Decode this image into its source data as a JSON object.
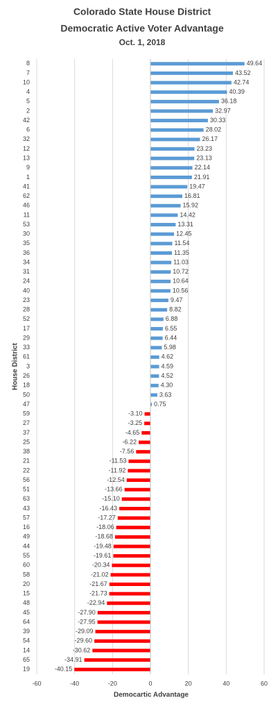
{
  "chart_data": {
    "type": "bar",
    "orientation": "horizontal",
    "title": [
      "Colorado State House District",
      "Democratic Active Voter Advantage"
    ],
    "subtitle": "Oct. 1, 2018",
    "x_label": "Democartic Advantage",
    "y_label": "House District",
    "categories": [
      "8",
      "7",
      "10",
      "4",
      "5",
      "2",
      "42",
      "6",
      "32",
      "12",
      "13",
      "9",
      "1",
      "41",
      "62",
      "46",
      "11",
      "53",
      "30",
      "35",
      "36",
      "34",
      "31",
      "24",
      "40",
      "23",
      "28",
      "52",
      "17",
      "29",
      "33",
      "61",
      "3",
      "26",
      "18",
      "50",
      "47",
      "59",
      "27",
      "37",
      "25",
      "38",
      "21",
      "22",
      "56",
      "51",
      "63",
      "43",
      "57",
      "16",
      "49",
      "44",
      "55",
      "60",
      "58",
      "20",
      "15",
      "48",
      "45",
      "64",
      "39",
      "54",
      "14",
      "65",
      "19"
    ],
    "values": [
      49.64,
      43.52,
      42.74,
      40.39,
      36.18,
      32.97,
      30.33,
      28.02,
      26.17,
      23.23,
      23.13,
      22.14,
      21.91,
      19.47,
      16.81,
      15.92,
      14.42,
      13.31,
      12.45,
      11.54,
      11.35,
      11.03,
      10.72,
      10.64,
      10.56,
      9.47,
      8.82,
      6.88,
      6.55,
      6.44,
      5.98,
      4.62,
      4.59,
      4.52,
      4.3,
      3.63,
      0.75,
      -3.1,
      -3.25,
      -4.65,
      -6.22,
      -7.56,
      -11.53,
      -11.92,
      -12.54,
      -13.66,
      -15.1,
      -16.43,
      -17.27,
      -18.06,
      -18.68,
      -19.48,
      -19.61,
      -20.34,
      -21.02,
      -21.67,
      -21.73,
      -22.94,
      -27.9,
      -27.95,
      -29.09,
      -29.6,
      -30.62,
      -34.91,
      -40.15
    ],
    "value_labels": [
      "49.64",
      "43.52",
      "42.74",
      "40.39",
      "36.18",
      "32.97",
      "30.33",
      "28.02",
      "26.17",
      "23.23",
      "23.13",
      "22.14",
      "21.91",
      "19.47",
      "16.81",
      "15.92",
      "14.42",
      "13.31",
      "12.45",
      "11.54",
      "11.35",
      "11.03",
      "10.72",
      "10.64",
      "10.56",
      "9.47",
      "8.82",
      "6.88",
      "6.55",
      "6.44",
      "5.98",
      "4.62",
      "4.59",
      "4.52",
      "4.30",
      "3.63",
      "0.75",
      "-3.10",
      "-3.25",
      "-4.65",
      "-6.22",
      "-7.56",
      "-11.53",
      "-11.92",
      "-12.54",
      "-13.66",
      "-15.10",
      "-16.43",
      "-17.27",
      "-18.06",
      "-18.68",
      "-19.48",
      "-19.61",
      "-20.34",
      "-21.02",
      "-21.67",
      "-21.73",
      "-22.94",
      "-27.90",
      "-27.95",
      "-29.09",
      "-29.60",
      "-30.62",
      "-34.91",
      "-40.15"
    ],
    "color": "#5b9bd5",
    "negative_color": "#ff0000",
    "xlim": [
      -60,
      60
    ],
    "xticks": [
      -60,
      -40,
      -20,
      0,
      20,
      40,
      60
    ],
    "grid": true
  }
}
